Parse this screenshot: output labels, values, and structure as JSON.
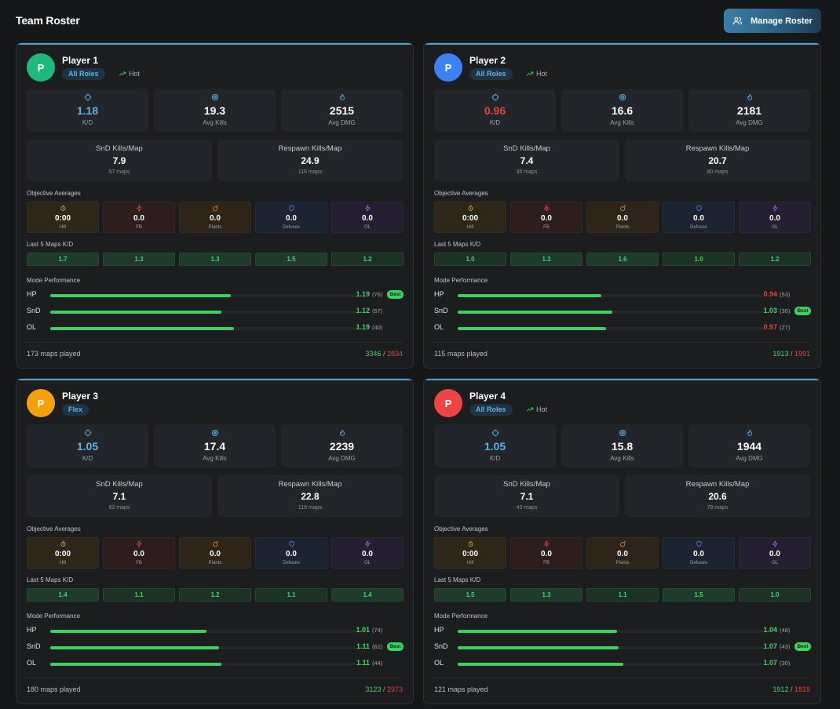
{
  "page": {
    "title": "Team Roster",
    "manage_button": "Manage Roster",
    "manage_icon": "users-icon"
  },
  "labels": {
    "kd": "K/D",
    "avg_kills": "Avg Kills",
    "avg_dmg": "Avg DMG",
    "snd_kpm": "SnD Kills/Map",
    "respawn_kpm": "Respawn Kills/Map",
    "objective_averages": "Objective Averages",
    "last5": "Last 5 Maps K/D",
    "mode_performance": "Mode Performance",
    "best": "Best",
    "hot": "Hot",
    "obj": [
      "Hill",
      "FB",
      "Plants",
      "Defuses",
      "OL"
    ]
  },
  "colors": {
    "accent_blue": "#5cb3e6",
    "green": "#3bd35f",
    "red": "#e0443e",
    "obj_backgrounds": [
      "#2e2719",
      "#2d1e1e",
      "#2e2419",
      "#1c2432",
      "#251f32"
    ],
    "obj_icons": [
      "#e8a73a",
      "#e84a4a",
      "#f08a3a",
      "#4f8ff0",
      "#a062f0"
    ]
  },
  "players": [
    {
      "initial": "P",
      "name": "Player 1",
      "avatar_color": "#1fb97c",
      "role": "All Roles",
      "hot": true,
      "kd": "1.18",
      "kd_color": "#5cb3e6",
      "avg_kills": "19.3",
      "avg_dmg": "2515",
      "snd_kpm": "7.9",
      "snd_maps": "57 maps",
      "respawn_kpm": "24.9",
      "respawn_maps": "116 maps",
      "objectives": [
        "0:00",
        "0.0",
        "0.0",
        "0.0",
        "0.0"
      ],
      "last5": [
        "1.7",
        "1.3",
        "1.3",
        "1.5",
        "1.2"
      ],
      "modes": [
        {
          "name": "HP",
          "kd": "1.19",
          "count": "(76)",
          "fill": 0.59,
          "color": "#46d170",
          "best": true
        },
        {
          "name": "SnD",
          "kd": "1.12",
          "count": "(57)",
          "fill": 0.56,
          "color": "#46d170",
          "best": false
        },
        {
          "name": "OL",
          "kd": "1.19",
          "count": "(40)",
          "fill": 0.6,
          "color": "#46d170",
          "best": false
        }
      ],
      "maps_played": "173 maps played",
      "kills": "3346",
      "sep": " / ",
      "deaths": "2834"
    },
    {
      "initial": "P",
      "name": "Player 2",
      "avatar_color": "#3b82f6",
      "role": "All Roles",
      "hot": true,
      "kd": "0.96",
      "kd_color": "#e0443e",
      "avg_kills": "16.6",
      "avg_dmg": "2181",
      "snd_kpm": "7.4",
      "snd_maps": "35 maps",
      "respawn_kpm": "20.7",
      "respawn_maps": "80 maps",
      "objectives": [
        "0:00",
        "0.0",
        "0.0",
        "0.0",
        "0.0"
      ],
      "last5": [
        "1.0",
        "1.3",
        "1.6",
        "1.0",
        "1.2"
      ],
      "modes": [
        {
          "name": "HP",
          "kd": "0.94",
          "count": "(53)",
          "fill": 0.47,
          "color": "#e0443e",
          "best": false
        },
        {
          "name": "SnD",
          "kd": "1.03",
          "count": "(35)",
          "fill": 0.505,
          "color": "#46d170",
          "best": true
        },
        {
          "name": "OL",
          "kd": "0.97",
          "count": "(27)",
          "fill": 0.485,
          "color": "#e0443e",
          "best": false
        }
      ],
      "maps_played": "115 maps played",
      "kills": "1913",
      "sep": " / ",
      "deaths": "1991"
    },
    {
      "initial": "P",
      "name": "Player 3",
      "avatar_color": "#f5a00c",
      "role": "Flex",
      "hot": false,
      "kd": "1.05",
      "kd_color": "#5cb3e6",
      "avg_kills": "17.4",
      "avg_dmg": "2239",
      "snd_kpm": "7.1",
      "snd_maps": "62 maps",
      "respawn_kpm": "22.8",
      "respawn_maps": "118 maps",
      "objectives": [
        "0:00",
        "0.0",
        "0.0",
        "0.0",
        "0.0"
      ],
      "last5": [
        "1.4",
        "1.1",
        "1.2",
        "1.1",
        "1.4"
      ],
      "modes": [
        {
          "name": "HP",
          "kd": "1.01",
          "count": "(74)",
          "fill": 0.51,
          "color": "#46d170",
          "best": false
        },
        {
          "name": "SnD",
          "kd": "1.11",
          "count": "(62)",
          "fill": 0.55,
          "color": "#46d170",
          "best": true
        },
        {
          "name": "OL",
          "kd": "1.11",
          "count": "(44)",
          "fill": 0.56,
          "color": "#46d170",
          "best": false
        }
      ],
      "maps_played": "180 maps played",
      "kills": "3123",
      "sep": " / ",
      "deaths": "2973"
    },
    {
      "initial": "P",
      "name": "Player 4",
      "avatar_color": "#ef4444",
      "role": "All Roles",
      "hot": true,
      "kd": "1.05",
      "kd_color": "#5cb3e6",
      "avg_kills": "15.8",
      "avg_dmg": "1944",
      "snd_kpm": "7.1",
      "snd_maps": "43 maps",
      "respawn_kpm": "20.6",
      "respawn_maps": "78 maps",
      "objectives": [
        "0:00",
        "0.0",
        "0.0",
        "0.0",
        "0.0"
      ],
      "last5": [
        "1.5",
        "1.3",
        "1.1",
        "1.5",
        "1.0"
      ],
      "modes": [
        {
          "name": "HP",
          "kd": "1.04",
          "count": "(48)",
          "fill": 0.52,
          "color": "#46d170",
          "best": false
        },
        {
          "name": "SnD",
          "kd": "1.07",
          "count": "(43)",
          "fill": 0.525,
          "color": "#46d170",
          "best": true
        },
        {
          "name": "OL",
          "kd": "1.07",
          "count": "(30)",
          "fill": 0.54,
          "color": "#46d170",
          "best": false
        }
      ],
      "maps_played": "121 maps played",
      "kills": "1912",
      "sep": " / ",
      "deaths": "1819"
    }
  ]
}
